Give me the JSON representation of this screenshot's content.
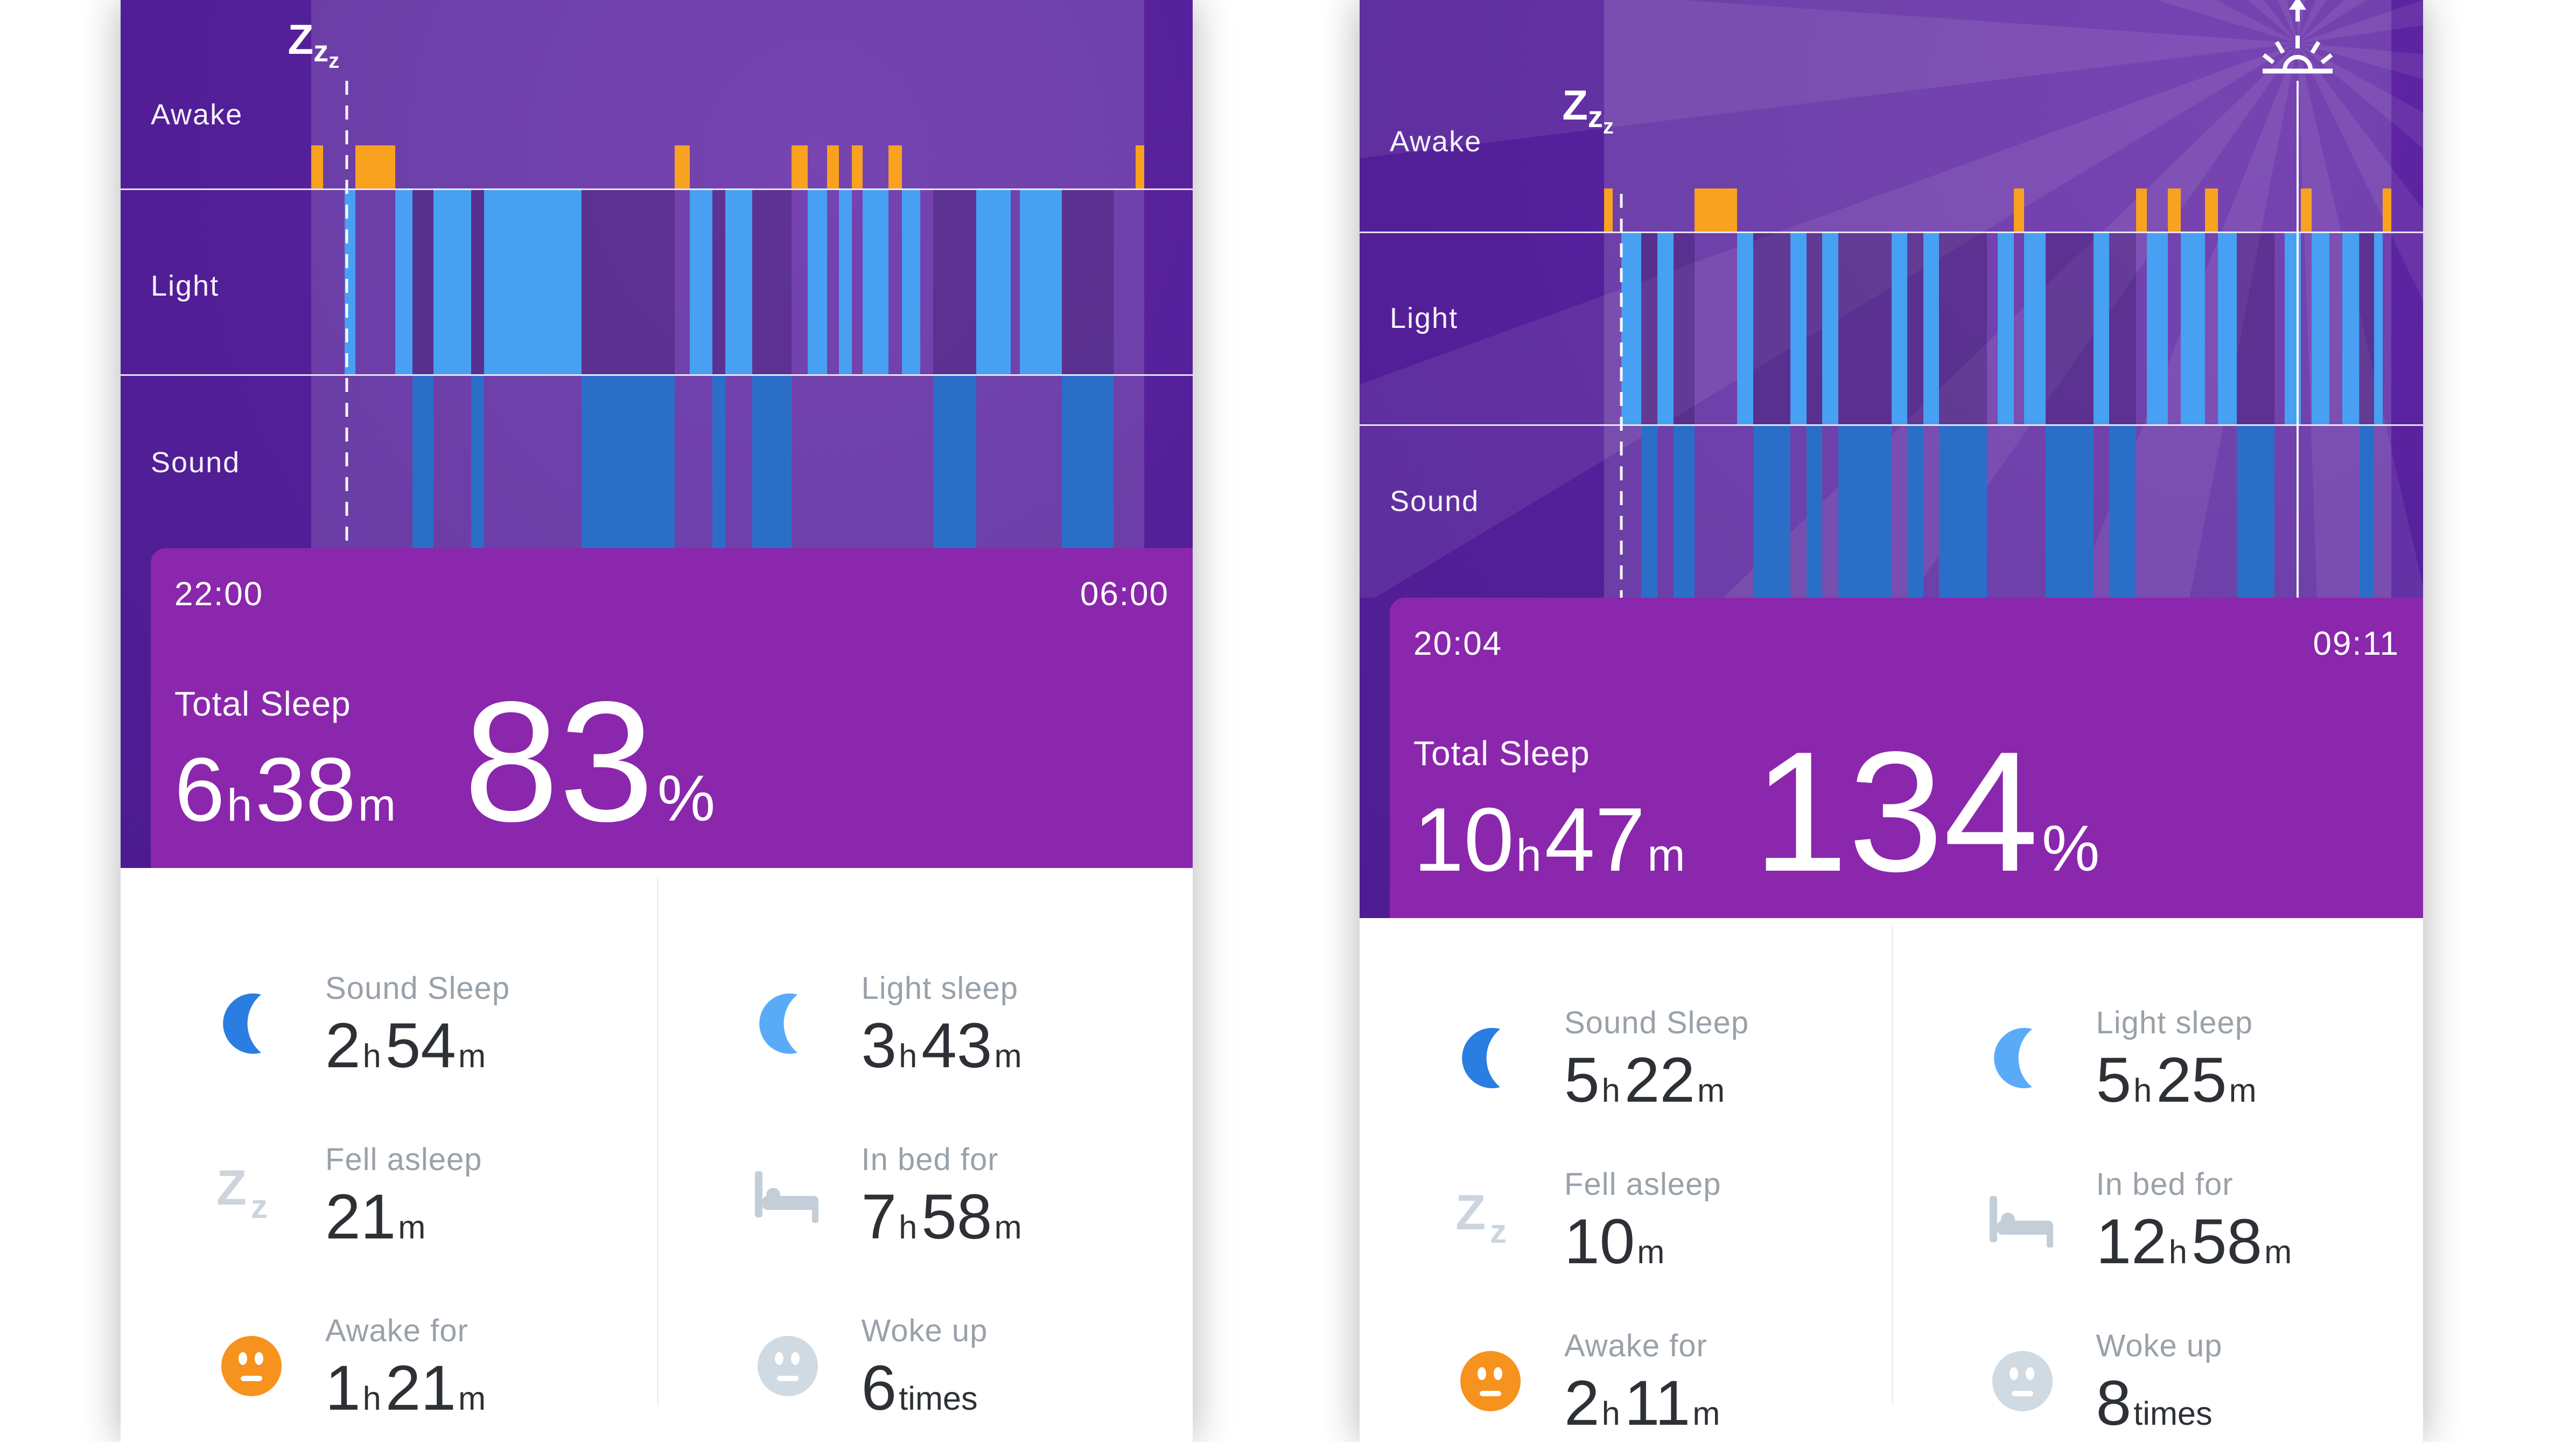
{
  "colors": {
    "chart_purple": "#54209a",
    "band_magenta": "#8b27ac",
    "awake_orange": "#f9a21f",
    "light_blue": "#47a0f2",
    "sound_blue": "#2b6ec8",
    "inbed_overlay": "rgba(255,255,255,0.14)",
    "stat_label_gray": "#99a1a9",
    "stat_value_dark": "#2d3135",
    "icon_gray": "#c6d0da",
    "moon_dark_blue": "#2a7de1",
    "moon_light_blue": "#5aabf7",
    "face_orange": "#f6921e"
  },
  "panels": [
    {
      "zone_labels": [
        "Awake",
        "Light",
        "Sound"
      ],
      "bed_time_start": "22:00",
      "bed_time_end": "06:00",
      "total_sleep_label": "Total Sleep",
      "duration_parts": [
        {
          "t": "6"
        },
        {
          "t": "h",
          "u": true
        },
        {
          "t": "38"
        },
        {
          "t": "m",
          "u": true
        }
      ],
      "percent_parts": [
        {
          "t": "83"
        },
        {
          "t": "%",
          "u": true
        }
      ],
      "chart": {
        "awake_line_pct": 34.4,
        "boundary_pct": 68.3,
        "inbed_pct": [
          17.8,
          95.5
        ],
        "sleep_marker_pct": 21.1,
        "wake_marker_pct": null,
        "segments": [
          [
            17.8,
            18.9,
            "awake"
          ],
          [
            18.9,
            20.9,
            "inbed"
          ],
          [
            20.9,
            21.9,
            "light"
          ],
          [
            21.9,
            25.6,
            "awake"
          ],
          [
            25.6,
            27.2,
            "light"
          ],
          [
            27.2,
            29.2,
            "sound"
          ],
          [
            29.2,
            32.7,
            "light"
          ],
          [
            32.7,
            33.9,
            "sound"
          ],
          [
            33.9,
            43.0,
            "light"
          ],
          [
            43.0,
            51.7,
            "sound"
          ],
          [
            51.7,
            53.1,
            "awake"
          ],
          [
            53.1,
            55.2,
            "light"
          ],
          [
            55.2,
            56.4,
            "sound"
          ],
          [
            56.4,
            58.9,
            "light"
          ],
          [
            58.9,
            62.6,
            "sound"
          ],
          [
            62.6,
            64.1,
            "awake"
          ],
          [
            64.1,
            65.9,
            "light"
          ],
          [
            65.9,
            67.0,
            "awake"
          ],
          [
            67.0,
            68.2,
            "light"
          ],
          [
            68.2,
            69.2,
            "awake"
          ],
          [
            69.2,
            71.6,
            "light"
          ],
          [
            71.6,
            72.9,
            "awake"
          ],
          [
            72.9,
            74.6,
            "light"
          ],
          [
            74.6,
            75.8,
            "inbed"
          ],
          [
            75.8,
            79.8,
            "sound"
          ],
          [
            79.8,
            83.0,
            "light"
          ],
          [
            83.0,
            83.9,
            "inbed"
          ],
          [
            83.9,
            87.8,
            "light"
          ],
          [
            87.8,
            92.6,
            "sound"
          ],
          [
            92.6,
            94.7,
            "inbed"
          ],
          [
            94.7,
            95.5,
            "awake"
          ]
        ]
      },
      "stats": [
        {
          "icon": "moon-dark",
          "label": "Sound Sleep",
          "value_parts": [
            {
              "t": "2"
            },
            {
              "t": "h",
              "u": true
            },
            {
              "t": "54"
            },
            {
              "t": "m",
              "u": true
            }
          ]
        },
        {
          "icon": "moon-light",
          "label": "Light sleep",
          "value_parts": [
            {
              "t": "3"
            },
            {
              "t": "h",
              "u": true
            },
            {
              "t": "43"
            },
            {
              "t": "m",
              "u": true
            }
          ]
        },
        {
          "icon": "zz",
          "label": "Fell asleep",
          "value_parts": [
            {
              "t": "21"
            },
            {
              "t": "m",
              "u": true
            }
          ]
        },
        {
          "icon": "bed",
          "label": "In bed for",
          "value_parts": [
            {
              "t": "7"
            },
            {
              "t": "h",
              "u": true
            },
            {
              "t": "58"
            },
            {
              "t": "m",
              "u": true
            }
          ]
        },
        {
          "icon": "face-orange",
          "label": "Awake for",
          "value_parts": [
            {
              "t": "1"
            },
            {
              "t": "h",
              "u": true
            },
            {
              "t": "21"
            },
            {
              "t": "m",
              "u": true
            }
          ]
        },
        {
          "icon": "face-gray",
          "label": "Woke up",
          "value_parts": [
            {
              "t": "6"
            },
            {
              "t": "times",
              "u": true
            }
          ]
        }
      ]
    },
    {
      "zone_labels": [
        "Awake",
        "Light",
        "Sound"
      ],
      "bed_time_start": "20:04",
      "bed_time_end": "09:11",
      "total_sleep_label": "Total Sleep",
      "duration_parts": [
        {
          "t": "10"
        },
        {
          "t": "h",
          "u": true
        },
        {
          "t": "47"
        },
        {
          "t": "m",
          "u": true
        }
      ],
      "percent_parts": [
        {
          "t": "134"
        },
        {
          "t": "%",
          "u": true
        }
      ],
      "chart": {
        "awake_line_pct": 38.7,
        "boundary_pct": 71.0,
        "inbed_pct": [
          23.0,
          97.0
        ],
        "sleep_marker_pct": 24.6,
        "wake_marker_pct": 88.2,
        "segments": [
          [
            23.0,
            23.8,
            "awake"
          ],
          [
            23.8,
            24.6,
            "inbed"
          ],
          [
            24.6,
            26.5,
            "light"
          ],
          [
            26.5,
            28.0,
            "sound"
          ],
          [
            28.0,
            29.5,
            "light"
          ],
          [
            29.5,
            31.5,
            "sound"
          ],
          [
            31.5,
            35.5,
            "awake"
          ],
          [
            35.5,
            37.0,
            "light"
          ],
          [
            37.0,
            40.5,
            "sound"
          ],
          [
            40.5,
            42.0,
            "light"
          ],
          [
            42.0,
            43.5,
            "sound"
          ],
          [
            43.5,
            45.0,
            "light"
          ],
          [
            45.0,
            50.0,
            "sound"
          ],
          [
            50.0,
            51.5,
            "light"
          ],
          [
            51.5,
            53.0,
            "sound"
          ],
          [
            53.0,
            54.5,
            "light"
          ],
          [
            54.5,
            59.0,
            "sound"
          ],
          [
            59.0,
            60.0,
            "inbed"
          ],
          [
            60.0,
            61.5,
            "light"
          ],
          [
            61.5,
            62.5,
            "awake"
          ],
          [
            62.5,
            64.5,
            "light"
          ],
          [
            64.5,
            69.0,
            "sound"
          ],
          [
            69.0,
            70.5,
            "light"
          ],
          [
            70.5,
            73.0,
            "sound"
          ],
          [
            73.0,
            74.0,
            "awake"
          ],
          [
            74.0,
            76.0,
            "light"
          ],
          [
            76.0,
            77.2,
            "awake"
          ],
          [
            77.2,
            79.5,
            "light"
          ],
          [
            79.5,
            80.7,
            "awake"
          ],
          [
            80.7,
            82.5,
            "light"
          ],
          [
            82.5,
            86.0,
            "sound"
          ],
          [
            86.0,
            87.0,
            "inbed"
          ],
          [
            87.0,
            88.5,
            "light"
          ],
          [
            88.5,
            89.5,
            "awake"
          ],
          [
            89.5,
            91.2,
            "light"
          ],
          [
            91.2,
            92.4,
            "inbed"
          ],
          [
            92.4,
            94.0,
            "light"
          ],
          [
            94.0,
            95.4,
            "sound"
          ],
          [
            95.4,
            96.2,
            "light"
          ],
          [
            96.2,
            97.0,
            "awake"
          ]
        ]
      },
      "stats": [
        {
          "icon": "moon-dark",
          "label": "Sound Sleep",
          "value_parts": [
            {
              "t": "5"
            },
            {
              "t": "h",
              "u": true
            },
            {
              "t": "22"
            },
            {
              "t": "m",
              "u": true
            }
          ]
        },
        {
          "icon": "moon-light",
          "label": "Light sleep",
          "value_parts": [
            {
              "t": "5"
            },
            {
              "t": "h",
              "u": true
            },
            {
              "t": "25"
            },
            {
              "t": "m",
              "u": true
            }
          ]
        },
        {
          "icon": "zz",
          "label": "Fell asleep",
          "value_parts": [
            {
              "t": "10"
            },
            {
              "t": "m",
              "u": true
            }
          ]
        },
        {
          "icon": "bed",
          "label": "In bed for",
          "value_parts": [
            {
              "t": "12"
            },
            {
              "t": "h",
              "u": true
            },
            {
              "t": "58"
            },
            {
              "t": "m",
              "u": true
            }
          ]
        },
        {
          "icon": "face-orange",
          "label": "Awake for",
          "value_parts": [
            {
              "t": "2"
            },
            {
              "t": "h",
              "u": true
            },
            {
              "t": "11"
            },
            {
              "t": "m",
              "u": true
            }
          ]
        },
        {
          "icon": "face-gray",
          "label": "Woke up",
          "value_parts": [
            {
              "t": "8"
            },
            {
              "t": "times",
              "u": true
            }
          ]
        }
      ]
    }
  ]
}
